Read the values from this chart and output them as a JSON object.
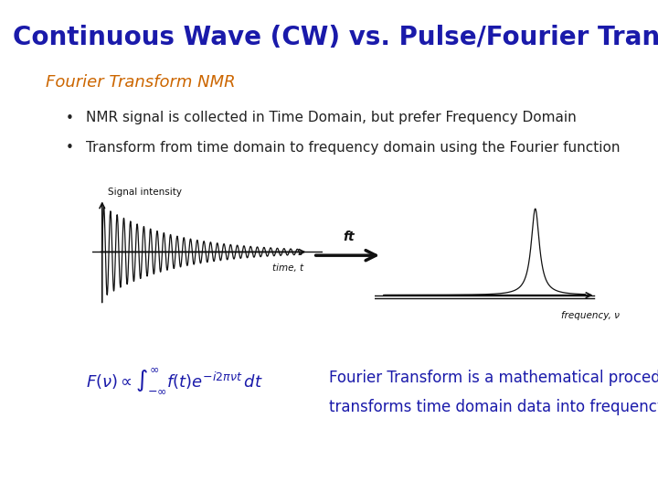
{
  "title": "Continuous Wave (CW) vs. Pulse/Fourier Transform",
  "title_color": "#1a1aaa",
  "title_fontsize": 20,
  "subtitle": "Fourier Transform NMR",
  "subtitle_color": "#cc6600",
  "subtitle_fontsize": 13,
  "bullet1": "NMR signal is collected in Time Domain, but prefer Frequency Domain",
  "bullet2": "Transform from time domain to frequency domain using the Fourier function",
  "bullet_color": "#222222",
  "bullet_fontsize": 11,
  "formula_color": "#1a1aaa",
  "formula_text": "$F(\\nu) \\propto \\int_{-\\infty}^{\\infty} f(t)e^{-i2\\pi\\nu t}\\, dt$",
  "desc_text1": "Fourier Transform is a mathematical procedure that",
  "desc_text2": "transforms time domain data into frequency domain",
  "desc_color": "#1a1aaa",
  "desc_fontsize": 12,
  "background_color": "#ffffff",
  "signal_label": "Signal intensity",
  "time_label": "time, t",
  "freq_label": "frequency, ν",
  "ft_label": "ft",
  "arrow_color": "#111111",
  "plot_color": "#111111"
}
